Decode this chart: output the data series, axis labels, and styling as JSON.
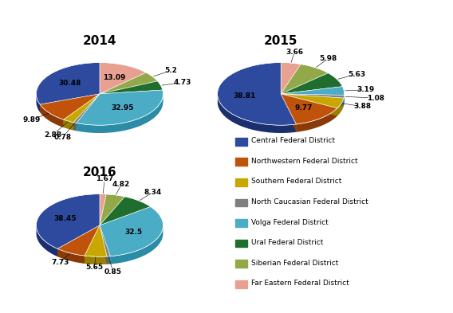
{
  "slices_2014": [
    30.48,
    9.89,
    2.88,
    0.78,
    32.95,
    4.73,
    5.2,
    13.09
  ],
  "slices_2015": [
    38.81,
    9.77,
    3.88,
    1.08,
    3.19,
    5.63,
    5.98,
    3.66
  ],
  "slices_2016": [
    38.45,
    7.73,
    5.65,
    0.85,
    32.5,
    8.34,
    4.82,
    1.67
  ],
  "labels": [
    "Central Federal District",
    "Northwestern Federal District",
    "Southern Federal District",
    "North Caucasian Federal District",
    "Volga Federal District",
    "Ural Federal District",
    "Siberian Federal District",
    "Far Eastern Federal District"
  ],
  "colors": [
    "#2E4A9E",
    "#C0520A",
    "#C8A800",
    "#7F7F7F",
    "#4BACC6",
    "#1F6E2E",
    "#93A848",
    "#E8A090"
  ],
  "shadow_colors": [
    "#1A306E",
    "#8A3A07",
    "#9A8000",
    "#5F5F5F",
    "#2A8CA6",
    "#0F4E1E",
    "#738828",
    "#C88070"
  ],
  "background_color": "#FFFFFF",
  "startangle_2014": 90,
  "startangle_2015": 90,
  "startangle_2016": 90
}
